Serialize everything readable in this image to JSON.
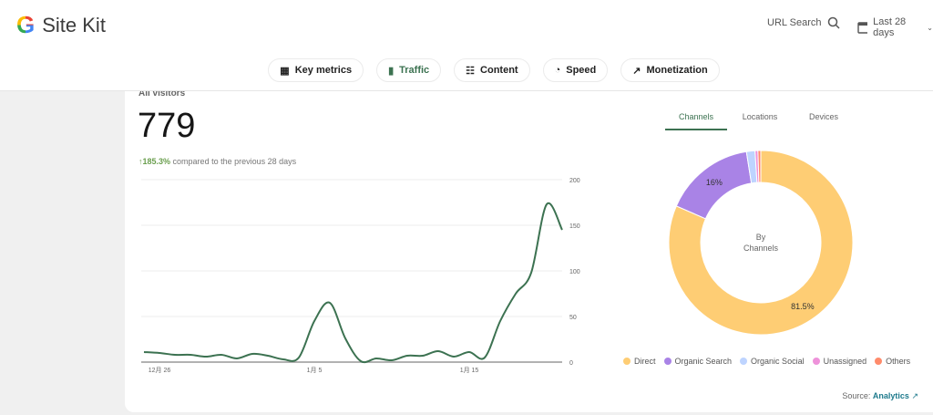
{
  "header": {
    "brand": "Site Kit",
    "url_search": "URL Search",
    "date_range": "Last 28 days"
  },
  "nav_tabs": [
    {
      "label": "Key metrics",
      "icon": "grid-icon"
    },
    {
      "label": "Traffic",
      "icon": "bar-chart-icon",
      "active": true
    },
    {
      "label": "Content",
      "icon": "document-list-icon"
    },
    {
      "label": "Speed",
      "icon": "speedometer-icon"
    },
    {
      "label": "Monetization",
      "icon": "trending-up-icon"
    }
  ],
  "visitors": {
    "label": "All visitors",
    "value": "779",
    "change": "185.3%",
    "change_text": "compared to the previous 28 days",
    "accent": "#3c7251"
  },
  "panel_tabs": [
    {
      "label": "Channels",
      "active": true
    },
    {
      "label": "Locations"
    },
    {
      "label": "Devices"
    }
  ],
  "source": {
    "label": "Source:",
    "link": "Analytics"
  },
  "chart_data": [
    {
      "type": "line",
      "x_ticks": [
        "12月 26",
        "1月 5",
        "1月 15"
      ],
      "x_tick_index": [
        1,
        11,
        21
      ],
      "y_ticks": [
        0,
        50,
        100,
        150,
        200
      ],
      "ylim": [
        0,
        200
      ],
      "grid": true,
      "color": "#3c7251",
      "values": [
        11,
        10,
        8,
        8,
        6,
        8,
        4,
        9,
        7,
        3,
        5,
        45,
        65,
        26,
        1,
        4,
        2,
        7,
        7,
        12,
        6,
        11,
        5,
        45,
        75,
        98,
        173,
        145
      ]
    },
    {
      "type": "pie",
      "center_label": [
        "By",
        "Channels"
      ],
      "legend": "bottom",
      "slices": [
        {
          "name": "Direct",
          "value": 81.5,
          "label": "81.5%",
          "color": "#fecd74"
        },
        {
          "name": "Organic Search",
          "value": 16,
          "label": "16%",
          "color": "#a983e6"
        },
        {
          "name": "Organic Social",
          "value": 1.5,
          "color": "#bed4ff"
        },
        {
          "name": "Unassigned",
          "value": 0.5,
          "color": "#ee92da"
        },
        {
          "name": "Others",
          "value": 0.5,
          "color": "#ff8b6b"
        }
      ]
    }
  ]
}
